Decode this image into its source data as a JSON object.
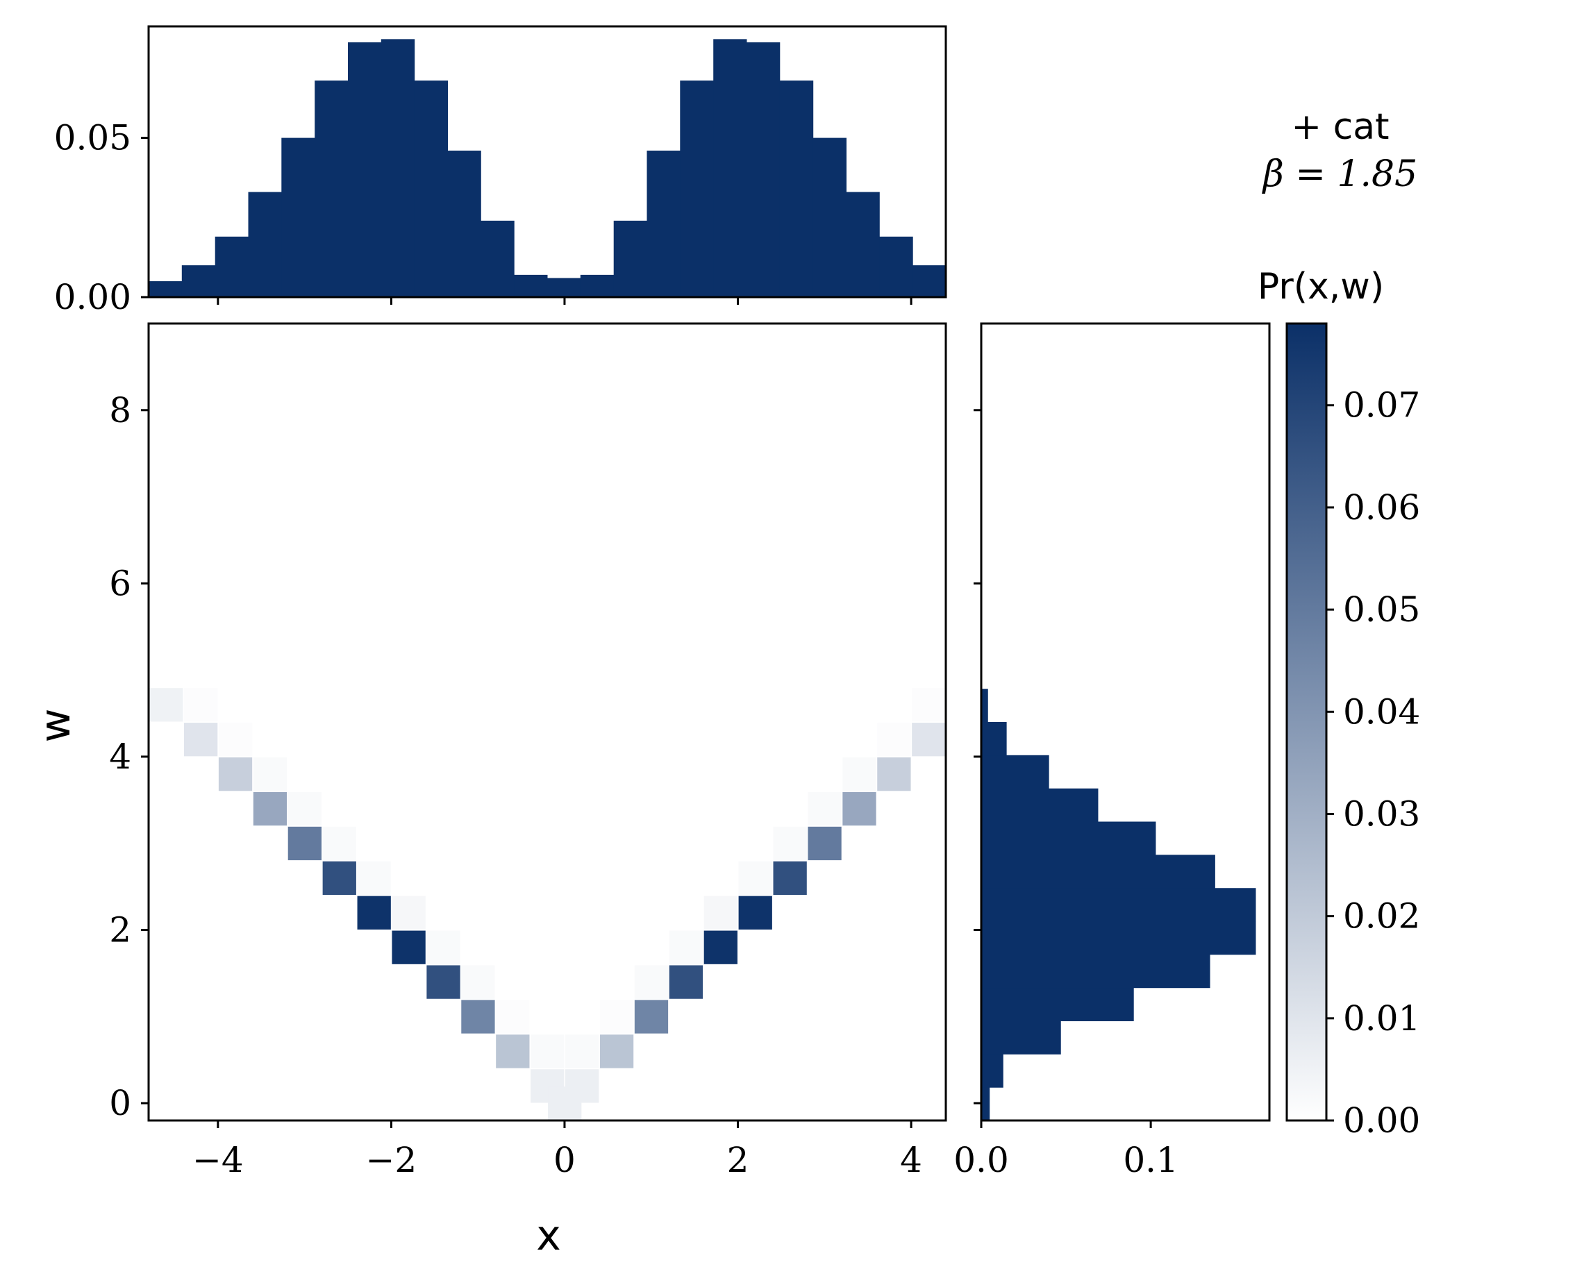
{
  "colors": {
    "dark": "#0b3068",
    "cmap_low": "#ffffff",
    "cmap_high": "#0b3068",
    "frame": "#000000"
  },
  "annotation": {
    "line1": "+ cat",
    "line2": "β = 1.85"
  },
  "chart_data": [
    {
      "name": "joint",
      "type": "heatmap",
      "xlabel": "x",
      "ylabel": "w",
      "xlim": [
        -4.8,
        4.4
      ],
      "ylim": [
        -0.2,
        9.0
      ],
      "xticks": [
        -4,
        -2,
        0,
        2,
        4
      ],
      "xtick_labels": [
        "−4",
        "−2",
        "0",
        "2",
        "4"
      ],
      "yticks": [
        0,
        2,
        4,
        6,
        8
      ],
      "ytick_labels": [
        "0",
        "2",
        "4",
        "6",
        "8"
      ],
      "x_bin_width": 0.383,
      "w_bin_height": 0.383,
      "cells": [
        {
          "x": -4.6,
          "w": 4.6,
          "p": 0.005
        },
        {
          "x": -4.2,
          "w": 4.2,
          "p": 0.01
        },
        {
          "x": -3.8,
          "w": 3.8,
          "p": 0.018
        },
        {
          "x": -3.4,
          "w": 3.4,
          "p": 0.033
        },
        {
          "x": -3.0,
          "w": 3.0,
          "p": 0.05
        },
        {
          "x": -2.6,
          "w": 2.6,
          "p": 0.066
        },
        {
          "x": -2.2,
          "w": 2.2,
          "p": 0.077
        },
        {
          "x": -1.8,
          "w": 1.8,
          "p": 0.077
        },
        {
          "x": -1.4,
          "w": 1.4,
          "p": 0.066
        },
        {
          "x": -1.0,
          "w": 1.0,
          "p": 0.046
        },
        {
          "x": -0.6,
          "w": 0.6,
          "p": 0.022
        },
        {
          "x": -0.2,
          "w": 0.2,
          "p": 0.006
        },
        {
          "x": 0.0,
          "w": 0.0,
          "p": 0.006
        },
        {
          "x": 0.2,
          "w": 0.2,
          "p": 0.006
        },
        {
          "x": 0.6,
          "w": 0.6,
          "p": 0.022
        },
        {
          "x": 1.0,
          "w": 1.0,
          "p": 0.046
        },
        {
          "x": 1.4,
          "w": 1.4,
          "p": 0.066
        },
        {
          "x": 1.8,
          "w": 1.8,
          "p": 0.077
        },
        {
          "x": 2.2,
          "w": 2.2,
          "p": 0.077
        },
        {
          "x": 2.6,
          "w": 2.6,
          "p": 0.066
        },
        {
          "x": 3.0,
          "w": 3.0,
          "p": 0.05
        },
        {
          "x": 3.4,
          "w": 3.4,
          "p": 0.033
        },
        {
          "x": 3.8,
          "w": 3.8,
          "p": 0.018
        },
        {
          "x": 4.2,
          "w": 4.2,
          "p": 0.01
        },
        {
          "x": -4.2,
          "w": 4.6,
          "p": 0.001
        },
        {
          "x": -3.8,
          "w": 4.2,
          "p": 0.001
        },
        {
          "x": -3.4,
          "w": 3.8,
          "p": 0.002
        },
        {
          "x": -3.0,
          "w": 3.4,
          "p": 0.002
        },
        {
          "x": -2.6,
          "w": 3.0,
          "p": 0.002
        },
        {
          "x": -2.2,
          "w": 2.6,
          "p": 0.002
        },
        {
          "x": -1.8,
          "w": 2.2,
          "p": 0.003
        },
        {
          "x": -1.4,
          "w": 1.8,
          "p": 0.002
        },
        {
          "x": -1.0,
          "w": 1.4,
          "p": 0.002
        },
        {
          "x": -0.6,
          "w": 1.0,
          "p": 0.001
        },
        {
          "x": -0.2,
          "w": 0.6,
          "p": 0.002
        },
        {
          "x": 0.2,
          "w": 0.6,
          "p": 0.002
        },
        {
          "x": 0.6,
          "w": 1.0,
          "p": 0.001
        },
        {
          "x": 1.0,
          "w": 1.4,
          "p": 0.002
        },
        {
          "x": 1.4,
          "w": 1.8,
          "p": 0.002
        },
        {
          "x": 1.8,
          "w": 2.2,
          "p": 0.003
        },
        {
          "x": 2.2,
          "w": 2.6,
          "p": 0.002
        },
        {
          "x": 2.6,
          "w": 3.0,
          "p": 0.002
        },
        {
          "x": 3.0,
          "w": 3.4,
          "p": 0.002
        },
        {
          "x": 3.4,
          "w": 3.8,
          "p": 0.002
        },
        {
          "x": 3.8,
          "w": 4.2,
          "p": 0.001
        },
        {
          "x": 4.2,
          "w": 4.6,
          "p": 0.001
        }
      ]
    },
    {
      "name": "marginal-x",
      "type": "bar",
      "xlim": [
        -4.8,
        4.4
      ],
      "ylim": [
        0.0,
        0.085
      ],
      "yticks": [
        0.0,
        0.05
      ],
      "ytick_labels": [
        "0.00",
        "0.05"
      ],
      "x_bin_edges": [
        -4.8,
        -4.417,
        -4.033,
        -3.65,
        -3.267,
        -2.883,
        -2.5,
        -2.117,
        -1.733,
        -1.35,
        -0.967,
        -0.583,
        -0.2,
        0.183,
        0.567,
        0.95,
        1.333,
        1.717,
        2.1,
        2.483,
        2.867,
        3.25,
        3.633,
        4.017,
        4.4
      ],
      "values": [
        0.005,
        0.01,
        0.019,
        0.033,
        0.05,
        0.068,
        0.08,
        0.081,
        0.068,
        0.046,
        0.024,
        0.007,
        0.006,
        0.007,
        0.024,
        0.046,
        0.068,
        0.081,
        0.08,
        0.068,
        0.05,
        0.033,
        0.019,
        0.01
      ]
    },
    {
      "name": "marginal-w",
      "type": "bar",
      "orientation": "horizontal",
      "xlim": [
        0.0,
        0.17
      ],
      "xticks": [
        0.0,
        0.1
      ],
      "xtick_labels": [
        "0.0",
        "0.1"
      ],
      "w_bin_edges": [
        -0.2,
        0.183,
        0.567,
        0.95,
        1.333,
        1.717,
        2.1,
        2.483,
        2.867,
        3.25,
        3.633,
        4.017,
        4.4,
        4.783
      ],
      "values": [
        0.005,
        0.013,
        0.047,
        0.09,
        0.135,
        0.162,
        0.162,
        0.138,
        0.103,
        0.069,
        0.04,
        0.015,
        0.004
      ]
    },
    {
      "name": "colorbar",
      "type": "colorbar",
      "label": "Pr(x,w)",
      "range": [
        0.0,
        0.078
      ],
      "ticks": [
        0.0,
        0.01,
        0.02,
        0.03,
        0.04,
        0.05,
        0.06,
        0.07
      ],
      "tick_labels": [
        "0.00",
        "0.01",
        "0.02",
        "0.03",
        "0.04",
        "0.05",
        "0.06",
        "0.07"
      ]
    }
  ]
}
